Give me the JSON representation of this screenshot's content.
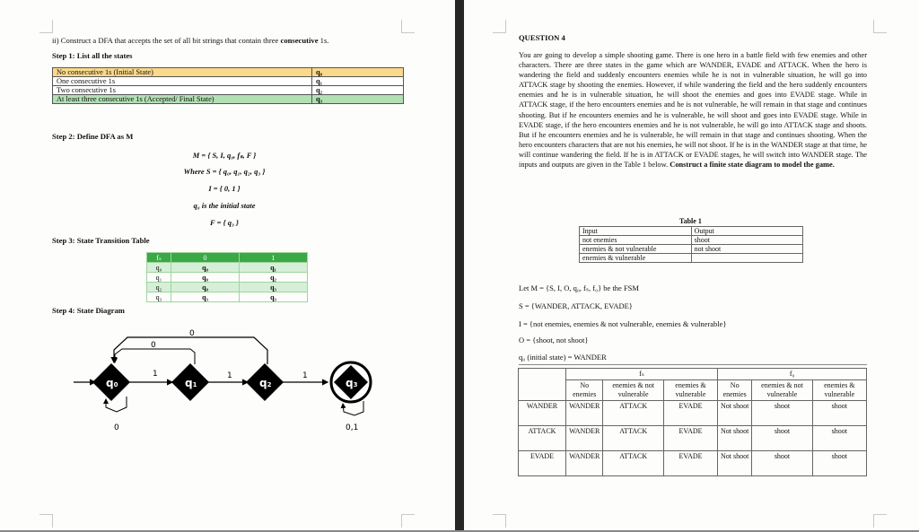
{
  "left_page": {
    "question": "ii) Construct a DFA that accepts the set of all bit strings that contain three ",
    "question_bold": "consecutive",
    "question_end": " 1s.",
    "step1": "Step 1: List all the states",
    "states": [
      {
        "desc": "No consecutive 1s (Initial State)",
        "state": "q₀",
        "color": "#fbd98a"
      },
      {
        "desc": "One consecutive 1s",
        "state": "q₁",
        "color": "#ffffff"
      },
      {
        "desc": "Two consecutive 1s",
        "state": "q₂",
        "color": "#ffffff"
      },
      {
        "desc": "At least three consecutive 1s (Accepted/ Final State)",
        "state": "q₃",
        "color": "#b3dfb4"
      }
    ],
    "step2": "Step 2: Define DFA as M",
    "m_def": "M  =  { S, I, q₀, fₛ, F }",
    "s_def": "Where S  =  { q₀, q₁, q₂, q₃ }",
    "i_def": "I  =  { 0, 1 }",
    "init_def": "q₀ is the initial state",
    "f_def": "F  =  { q₃ }",
    "step3": "Step 3: State Transition Table",
    "transition_header": [
      "fₛ",
      "0",
      "1"
    ],
    "transitions": [
      [
        "q₀",
        "q₀",
        "q₁"
      ],
      [
        "q₁",
        "q₀",
        "q₂"
      ],
      [
        "q₂",
        "q₀",
        "q₃"
      ],
      [
        "q₃",
        "q₃",
        "q₃"
      ]
    ],
    "step4": "Step 4: State Diagram",
    "diagram": {
      "states": [
        "q0",
        "q1",
        "q2",
        "q3"
      ],
      "edge_labels": {
        "q0_q1": "1",
        "q1_q2": "1",
        "q2_q3": "1",
        "q1_q0": "0",
        "q2_q0": "0",
        "q0_loop": "0",
        "q3_loop": "0,1"
      }
    }
  },
  "right_page": {
    "title": "QUESTION 4",
    "body": "You are going to develop a simple shooting game. There is one hero in a battle field with few enemies and other characters. There are three states in the game which are WANDER, EVADE and ATTACK. When the hero is wandering the field and suddenly encounters enemies while he is not in vulnerable situation, he will go into ATTACK stage by shooting the enemies. However, if while wandering the field and the hero suddenly encounters enemies and he is in vulnerable situation, he will shoot the enemies and goes into EVADE stage. While in ATTACK stage, if the hero encounters enemies and he is not vulnerable, he will remain in that stage and continues shooting. But if he encounters enemies and he is vulnerable, he will shoot and goes into EVADE stage. While in EVADE stage, if the hero encounters enemies and he is not vulnerable, he will go into ATTACK stage and shoots. But if he encounters enemies and he is vulnerable, he will remain in that stage and continues shooting. When the hero encounters characters that are not his enemies, he will not shoot. If he is in the WANDER stage at that time, he will continue wandering the field. If he is in ATTACK or EVADE stages, he will switch into WANDER stage. The inputs and outputs are given in the Table 1 below. ",
    "body_bold": "Construct a finite state diagram to model the game.",
    "table1_caption": "Table 1",
    "table1": [
      [
        "Input",
        "Output"
      ],
      [
        "not enemies",
        "shoot"
      ],
      [
        "enemies & not vulnerable",
        "not shoot"
      ],
      [
        "enemies & vulnerable",
        ""
      ]
    ],
    "fsm_lines": [
      "Let M = {S, I, O, q₀, fₛ, f₀} be the FSM",
      "S = {WANDER, ATTACK, EVADE}",
      "I = {not enemies, enemies & not vulnerable, enemies & vulnerable}",
      "O = {shoot, not shoot}",
      "q₀ (initial state) = WANDER"
    ],
    "big_table": {
      "groups": [
        "fₛ",
        "f₀"
      ],
      "subheaders": [
        "No enemies",
        "enemies & not vulnerable",
        "enemies & vulnerable",
        "No enemies",
        "enemies & not vulnerable",
        "enemies & vulnerable"
      ],
      "rows": [
        [
          "WANDER",
          "WANDER",
          "ATTACK",
          "EVADE",
          "Not shoot",
          "shoot",
          "shoot"
        ],
        [
          "ATTACK",
          "WANDER",
          "ATTACK",
          "EVADE",
          "Not shoot",
          "shoot",
          "shoot"
        ],
        [
          "EVADE",
          "WANDER",
          "ATTACK",
          "EVADE",
          "Not shoot",
          "shoot",
          "shoot"
        ]
      ]
    }
  }
}
